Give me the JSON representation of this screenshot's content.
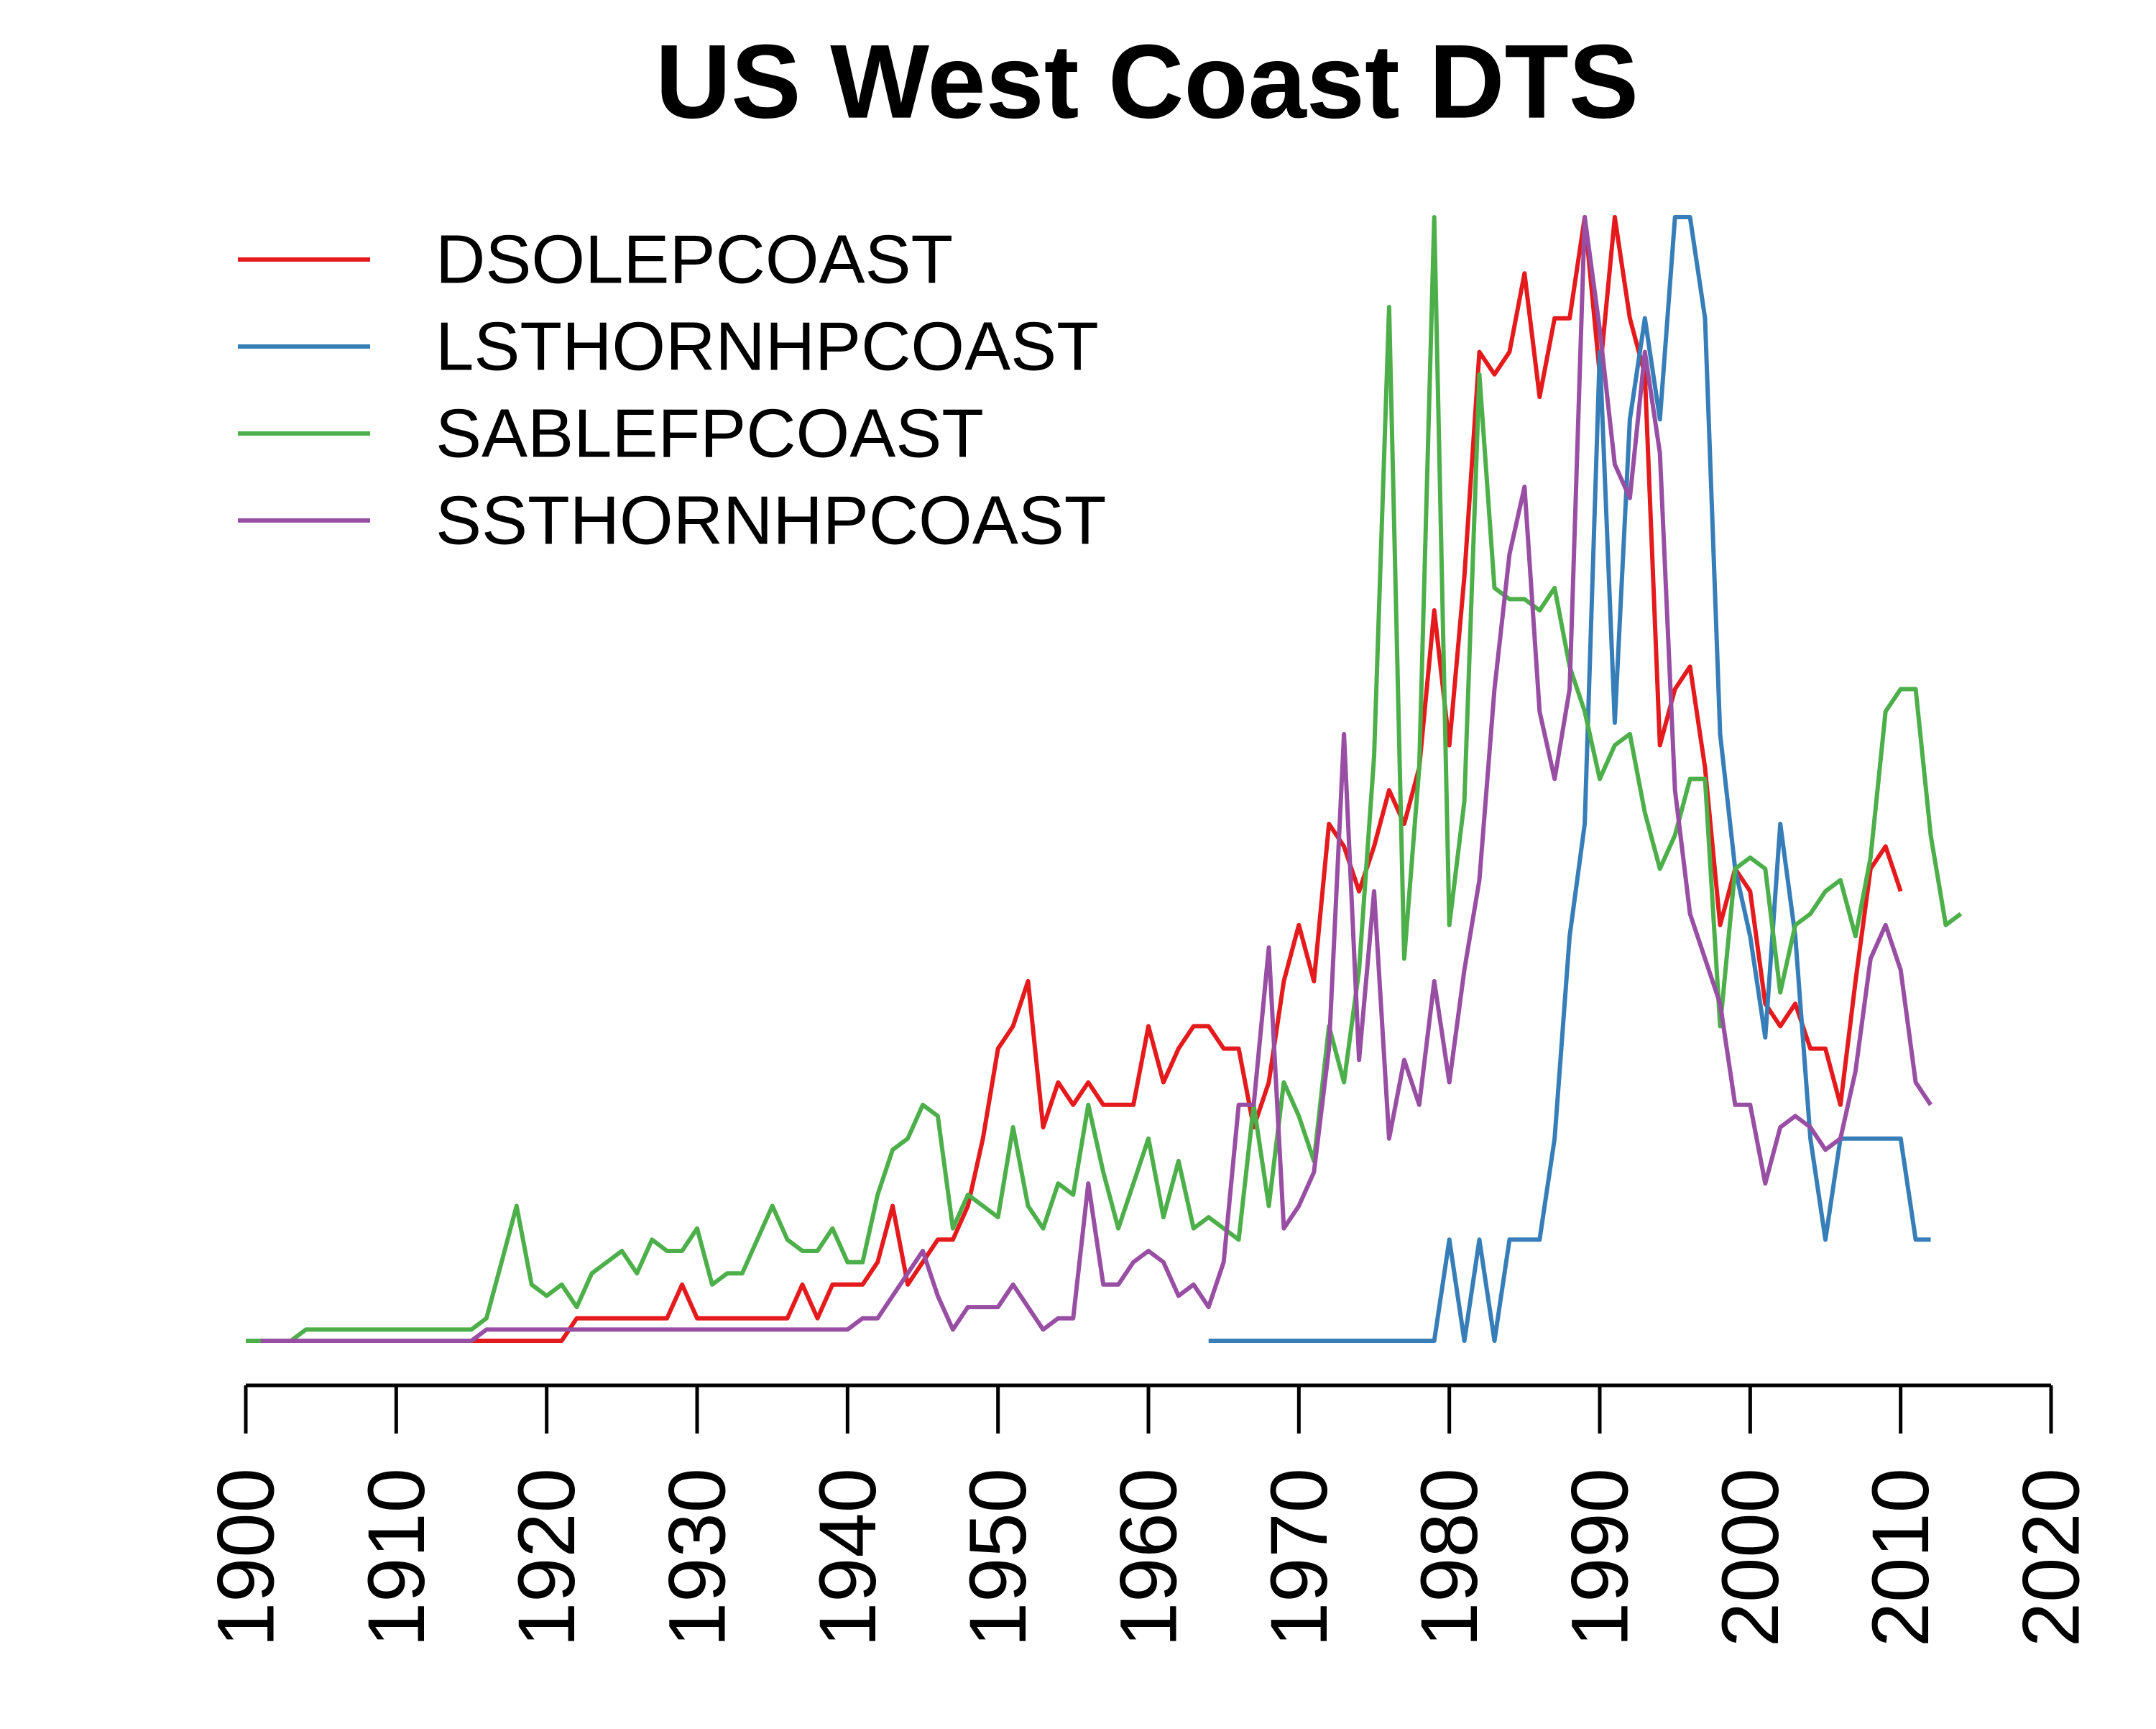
{
  "chart_data": {
    "type": "line",
    "title": "US West Coast DTS",
    "x": [
      1900,
      1901,
      1902,
      1903,
      1904,
      1905,
      1906,
      1907,
      1908,
      1909,
      1910,
      1911,
      1912,
      1913,
      1914,
      1915,
      1916,
      1917,
      1918,
      1919,
      1920,
      1921,
      1922,
      1923,
      1924,
      1925,
      1926,
      1927,
      1928,
      1929,
      1930,
      1931,
      1932,
      1933,
      1934,
      1935,
      1936,
      1937,
      1938,
      1939,
      1940,
      1941,
      1942,
      1943,
      1944,
      1945,
      1946,
      1947,
      1948,
      1949,
      1950,
      1951,
      1952,
      1953,
      1954,
      1955,
      1956,
      1957,
      1958,
      1959,
      1960,
      1961,
      1962,
      1963,
      1964,
      1965,
      1966,
      1967,
      1968,
      1969,
      1970,
      1971,
      1972,
      1973,
      1974,
      1975,
      1976,
      1977,
      1978,
      1979,
      1980,
      1981,
      1982,
      1983,
      1984,
      1985,
      1986,
      1987,
      1988,
      1989,
      1990,
      1991,
      1992,
      1993,
      1994,
      1995,
      1996,
      1997,
      1998,
      1999,
      2000,
      2001,
      2002,
      2003,
      2004,
      2005,
      2006,
      2007,
      2008,
      2009,
      2010,
      2011,
      2012,
      2013,
      2014
    ],
    "series": [
      {
        "name": "DSOLEPCOAST",
        "color": "#e41a1c",
        "values": [
          null,
          0,
          0,
          0,
          0,
          0,
          0,
          0,
          0,
          0,
          0,
          0,
          0,
          0,
          0,
          0,
          0,
          0,
          0,
          0,
          0,
          0,
          0.02,
          0.02,
          0.02,
          0.02,
          0.02,
          0.02,
          0.02,
          0.05,
          0.02,
          0.02,
          0.02,
          0.02,
          0.02,
          0.02,
          0.02,
          0.05,
          0.02,
          0.05,
          0.05,
          0.05,
          0.07,
          0.12,
          0.05,
          0.07,
          0.09,
          0.09,
          0.12,
          0.18,
          0.26,
          0.28,
          0.32,
          0.19,
          0.23,
          0.21,
          0.23,
          0.21,
          0.21,
          0.21,
          0.28,
          0.23,
          0.26,
          0.28,
          0.28,
          0.26,
          0.26,
          0.19,
          0.23,
          0.32,
          0.37,
          0.32,
          0.46,
          0.44,
          0.4,
          0.44,
          0.49,
          0.46,
          0.51,
          0.65,
          0.53,
          0.68,
          0.88,
          0.86,
          0.88,
          0.95,
          0.84,
          0.91,
          0.91,
          1,
          0.86,
          1,
          0.91,
          0.86,
          0.53,
          0.58,
          0.6,
          0.51,
          0.37,
          0.42,
          0.4,
          0.3,
          0.28,
          0.3,
          0.26,
          0.26,
          0.21,
          0.32,
          0.42,
          0.44,
          0.4,
          null,
          null,
          null,
          null
        ]
      },
      {
        "name": "LSTHORNHPCOAST",
        "color": "#377eb8",
        "values": [
          null,
          null,
          null,
          null,
          null,
          null,
          null,
          null,
          null,
          null,
          null,
          null,
          null,
          null,
          null,
          null,
          null,
          null,
          null,
          null,
          null,
          null,
          null,
          null,
          null,
          null,
          null,
          null,
          null,
          null,
          null,
          null,
          null,
          null,
          null,
          null,
          null,
          null,
          null,
          null,
          null,
          null,
          null,
          null,
          null,
          null,
          null,
          null,
          null,
          null,
          null,
          null,
          null,
          null,
          null,
          null,
          null,
          null,
          null,
          null,
          null,
          null,
          null,
          null,
          0,
          0,
          0,
          0,
          0,
          0,
          0,
          0,
          0,
          0,
          0,
          0,
          0,
          0,
          0,
          0,
          0.09,
          0,
          0.09,
          0,
          0.09,
          0.09,
          0.09,
          0.18,
          0.36,
          0.46,
          0.88,
          0.55,
          0.82,
          0.91,
          0.82,
          1,
          1,
          0.91,
          0.54,
          0.42,
          0.36,
          0.27,
          0.46,
          0.36,
          0.18,
          0.09,
          0.18,
          0.18,
          0.18,
          0.18,
          0.18,
          0.09,
          0.09,
          null,
          null
        ]
      },
      {
        "name": "SABLEFPCOAST",
        "color": "#4daf4a",
        "values": [
          0,
          0,
          0,
          0,
          0.01,
          0.01,
          0.01,
          0.01,
          0.01,
          0.01,
          0.01,
          0.01,
          0.01,
          0.01,
          0.01,
          0.01,
          0.02,
          0.07,
          0.12,
          0.05,
          0.04,
          0.05,
          0.03,
          0.06,
          0.07,
          0.08,
          0.06,
          0.09,
          0.08,
          0.08,
          0.1,
          0.05,
          0.06,
          0.06,
          0.09,
          0.12,
          0.09,
          0.08,
          0.08,
          0.1,
          0.07,
          0.07,
          0.13,
          0.17,
          0.18,
          0.21,
          0.2,
          0.1,
          0.13,
          0.12,
          0.11,
          0.19,
          0.12,
          0.1,
          0.14,
          0.13,
          0.21,
          0.15,
          0.1,
          0.14,
          0.18,
          0.11,
          0.16,
          0.1,
          0.11,
          0.1,
          0.09,
          0.21,
          0.12,
          0.23,
          0.2,
          0.16,
          0.28,
          0.23,
          0.33,
          0.52,
          0.92,
          0.34,
          0.51,
          1,
          0.37,
          0.48,
          0.86,
          0.67,
          0.66,
          0.66,
          0.65,
          0.67,
          0.6,
          0.56,
          0.5,
          0.53,
          0.54,
          0.47,
          0.42,
          0.45,
          0.5,
          0.5,
          0.28,
          0.42,
          0.43,
          0.42,
          0.31,
          0.37,
          0.38,
          0.4,
          0.41,
          0.36,
          0.43,
          0.56,
          0.58,
          0.58,
          0.45,
          0.37,
          0.38
        ]
      },
      {
        "name": "SSTHORNHPCOAST",
        "color": "#984ea3",
        "values": [
          null,
          0,
          0,
          0,
          0,
          0,
          0,
          0,
          0,
          0,
          0,
          0,
          0,
          0,
          0,
          0,
          0.01,
          0.01,
          0.01,
          0.01,
          0.01,
          0.01,
          0.01,
          0.01,
          0.01,
          0.01,
          0.01,
          0.01,
          0.01,
          0.01,
          0.01,
          0.01,
          0.01,
          0.01,
          0.01,
          0.01,
          0.01,
          0.01,
          0.01,
          0.01,
          0.01,
          0.02,
          0.02,
          0.04,
          0.06,
          0.08,
          0.04,
          0.01,
          0.03,
          0.03,
          0.03,
          0.05,
          0.03,
          0.01,
          0.02,
          0.02,
          0.14,
          0.05,
          0.05,
          0.07,
          0.08,
          0.07,
          0.04,
          0.05,
          0.03,
          0.07,
          0.21,
          0.21,
          0.35,
          0.1,
          0.12,
          0.15,
          0.26,
          0.54,
          0.25,
          0.4,
          0.18,
          0.25,
          0.21,
          0.32,
          0.23,
          0.33,
          0.41,
          0.58,
          0.7,
          0.76,
          0.56,
          0.5,
          0.58,
          1,
          0.9,
          0.78,
          0.75,
          0.88,
          0.79,
          0.49,
          0.38,
          0.34,
          0.3,
          0.21,
          0.21,
          0.14,
          0.19,
          0.2,
          0.19,
          0.17,
          0.18,
          0.24,
          0.34,
          0.37,
          0.33,
          0.23,
          0.21,
          null,
          null
        ]
      }
    ],
    "xlim": [
      1900,
      2020
    ],
    "xticks": [
      1900,
      1910,
      1920,
      1930,
      1940,
      1950,
      1960,
      1970,
      1980,
      1990,
      2000,
      2010,
      2020
    ],
    "ylim": [
      0,
      1
    ],
    "legend": "topleft",
    "grid": false
  }
}
